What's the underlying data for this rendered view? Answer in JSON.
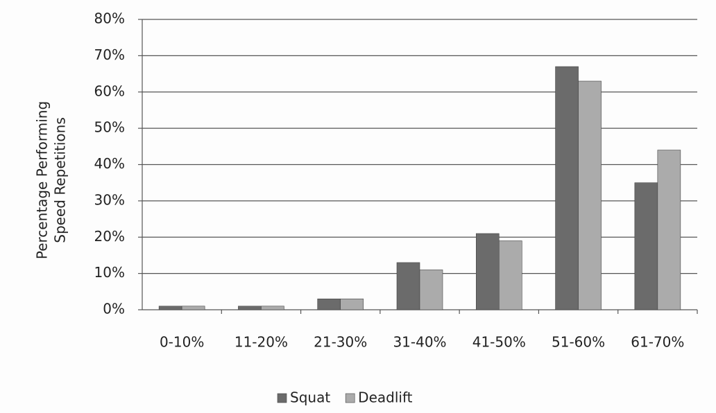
{
  "chart_data": {
    "type": "bar",
    "y_label": [
      "Percentage Performing",
      "Speed Repetitions"
    ],
    "categories": [
      "0-10%",
      "11-20%",
      "21-30%",
      "31-40%",
      "41-50%",
      "51-60%",
      "61-70%"
    ],
    "series": [
      {
        "name": "Squat",
        "color": "#6b6b6b",
        "values": [
          1,
          1,
          3,
          13,
          21,
          67,
          35
        ]
      },
      {
        "name": "Deadlift",
        "color": "#ababab",
        "values": [
          1,
          1,
          3,
          11,
          19,
          63,
          44
        ]
      }
    ],
    "ylim": [
      0,
      80
    ],
    "yticks": [
      {
        "value": 0,
        "label": "0%"
      },
      {
        "value": 10,
        "label": "10%"
      },
      {
        "value": 20,
        "label": "20%"
      },
      {
        "value": 30,
        "label": "30%"
      },
      {
        "value": 40,
        "label": "40%"
      },
      {
        "value": 50,
        "label": "50%"
      },
      {
        "value": 60,
        "label": "60%"
      },
      {
        "value": 70,
        "label": "70%"
      },
      {
        "value": 80,
        "label": "80%"
      }
    ],
    "grid": true,
    "legend": "bottom"
  }
}
